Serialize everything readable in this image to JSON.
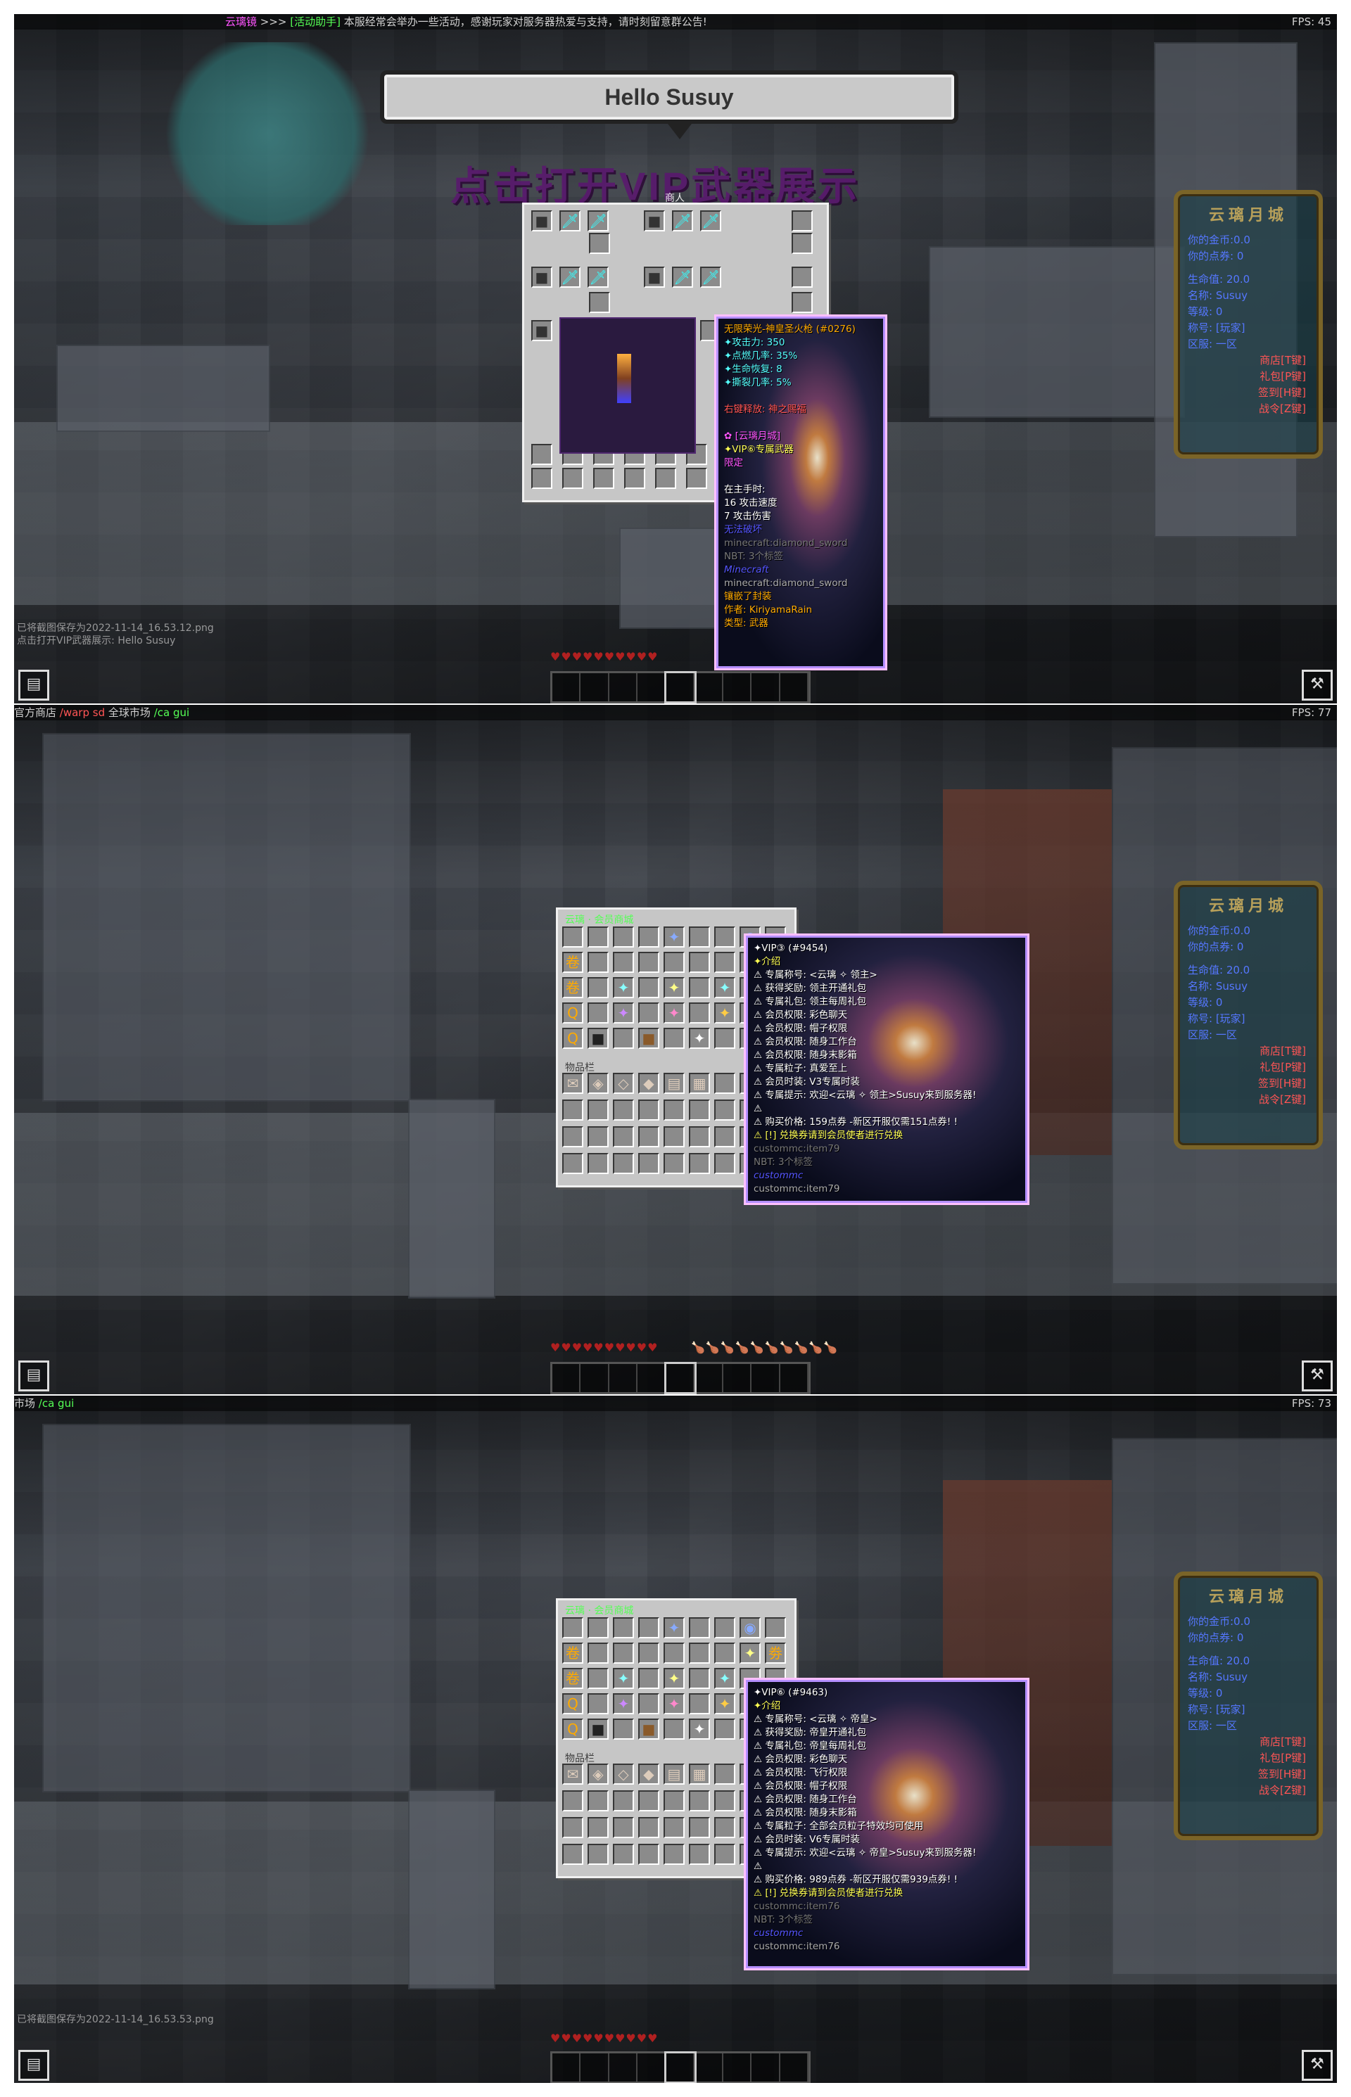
{
  "panel1": {
    "chat_top": {
      "prefix": "云璃镜",
      "arrows": ">>>",
      "helper": "[活动助手]",
      "message": "本服经常会举办一些活动，感谢玩家对服务器热爱与支持，请时刻留意群公告!"
    },
    "fps": "FPS: 45",
    "speech_bubble": "Hello Susuy",
    "banner": "点击打开VIP武器展示",
    "gui_title": "商人",
    "tooltip": {
      "name": "无限荣光-神皇圣火枪 (#0276)",
      "lines": [
        "✦攻击力: 350",
        "✦点燃几率: 35%",
        "✦生命恢复: 8",
        "✦撕裂几率: 5%",
        "",
        "右键释放: 神之赐福",
        "",
        "✿ [云璃月城]",
        "✦VIP⑥专属武器",
        "限定",
        "",
        "在主手时:",
        " 16 攻击速度",
        " 7 攻击伤害",
        "无法破坏",
        "minecraft:diamond_sword",
        "NBT: 3个标签",
        "Minecraft",
        "minecraft:diamond_sword",
        "镶嵌了封装",
        "作者: KiriyamaRain",
        "类型: 武器"
      ]
    },
    "saved_lines": [
      "已将截图保存为2022-11-14_16.53.12.png",
      "点击打开VIP武器展示: Hello Susuy"
    ],
    "scoreboard": {
      "title": "云璃月城",
      "lines": [
        "你的金币:0.0",
        "你的点券: 0",
        "生命值: 20.0",
        "名称: Susuy",
        "等级: 0",
        "称号: [玩家]",
        "区服: 一区"
      ],
      "right": [
        "商店[T键]",
        "礼包[P键]",
        "签到[H键]",
        "战令[Z键]"
      ]
    }
  },
  "panel2": {
    "chat_top": {
      "left": "官方商店",
      "warp": "/warp sd",
      "market": "全球市场",
      "cmd": "/ca gui"
    },
    "fps": "FPS: 77",
    "gui_title": "云璃 · 会员商城",
    "inventory_label": "物品栏",
    "tooltip": {
      "name": "✦VIP③ (#9454)",
      "lines": [
        "✦介绍",
        "⚠ 专属称号: <云璃 ✧ 领主>",
        "⚠ 获得奖励: 领主开通礼包",
        "⚠ 专属礼包: 领主每周礼包",
        "⚠ 会员权限: 彩色聊天",
        "⚠ 会员权限: 帽子权限",
        "⚠ 会员权限: 随身工作台",
        "⚠ 会员权限: 随身末影箱",
        "⚠ 专属粒子: 真爱至上",
        "⚠ 会员时装: V3专属时装",
        "⚠ 专属提示: 欢迎<云璃 ✧ 领主>Susuy来到服务器!",
        "⚠",
        "⚠ 购买价格: 159点券 -新区开服仅需151点券! !",
        "⚠ [!] 兑换券请到会员使者进行兑换",
        "custommc:item79",
        "NBT: 3个标签",
        "custommc",
        "custommc:item79"
      ]
    },
    "scoreboard": {
      "title": "云璃月城",
      "lines": [
        "你的金币:0.0",
        "你的点券: 0",
        "生命值: 20.0",
        "名称: Susuy",
        "等级: 0",
        "称号: [玩家]",
        "区服: 一区"
      ],
      "right": [
        "商店[T键]",
        "礼包[P键]",
        "签到[H键]",
        "战令[Z键]"
      ]
    }
  },
  "panel3": {
    "chat_top": {
      "market": "市场",
      "cmd": "/ca gui"
    },
    "fps": "FPS: 73",
    "gui_title": "云璃 · 会员商城",
    "inventory_label": "物品栏",
    "tooltip": {
      "name": "✦VIP⑥ (#9463)",
      "lines": [
        "✦介绍",
        "⚠ 专属称号: <云璃 ✧ 帝皇>",
        "⚠ 获得奖励: 帝皇开通礼包",
        "⚠ 专属礼包: 帝皇每周礼包",
        "⚠ 会员权限: 彩色聊天",
        "⚠ 会员权限: 飞行权限",
        "⚠ 会员权限: 帽子权限",
        "⚠ 会员权限: 随身工作台",
        "⚠ 会员权限: 随身末影箱",
        "⚠ 专属粒子: 全部会员粒子特效均可使用",
        "⚠ 会员时装: V6专属时装",
        "⚠ 专属提示: 欢迎<云璃 ✧ 帝皇>Susuy来到服务器!",
        "⚠",
        "⚠ 购买价格: 989点券 -新区开服仅需939点券! !",
        "⚠ [!] 兑换券请到会员使者进行兑换",
        "custommc:item76",
        "NBT: 3个标签",
        "custommc",
        "custommc:item76"
      ]
    },
    "saved_line": "已将截图保存为2022-11-14_16.53.53.png",
    "scoreboard": {
      "title": "云璃月城",
      "lines": [
        "你的金币:0.0",
        "你的点券: 0",
        "生命值: 20.0",
        "名称: Susuy",
        "等级: 0",
        "称号: [玩家]",
        "区服: 一区"
      ],
      "right": [
        "商店[T键]",
        "礼包[P键]",
        "签到[H键]",
        "战令[Z键]"
      ]
    }
  },
  "hud": {
    "hearts": "♥♥♥♥♥♥♥♥♥♥",
    "food": "🍗🍗🍗🍗🍗🍗🍗🍗🍗🍗"
  },
  "colors": {
    "tooltip_border": "#b48fff",
    "gui_bg": "#c6c6c6",
    "scoreboard_frame": "#7a6428"
  }
}
